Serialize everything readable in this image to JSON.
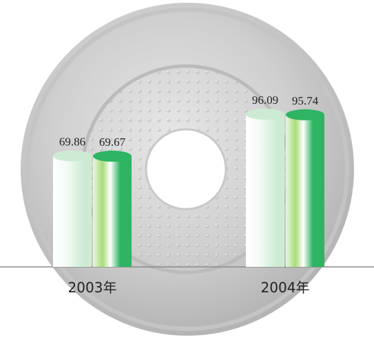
{
  "chart_data": {
    "type": "bar",
    "categories": [
      "2003年",
      "2004年"
    ],
    "series": [
      {
        "color": "#cdebd4",
        "values": [
          69.86,
          96.09
        ]
      },
      {
        "color": "#2fb463",
        "values": [
          69.67,
          95.74
        ]
      }
    ]
  }
}
